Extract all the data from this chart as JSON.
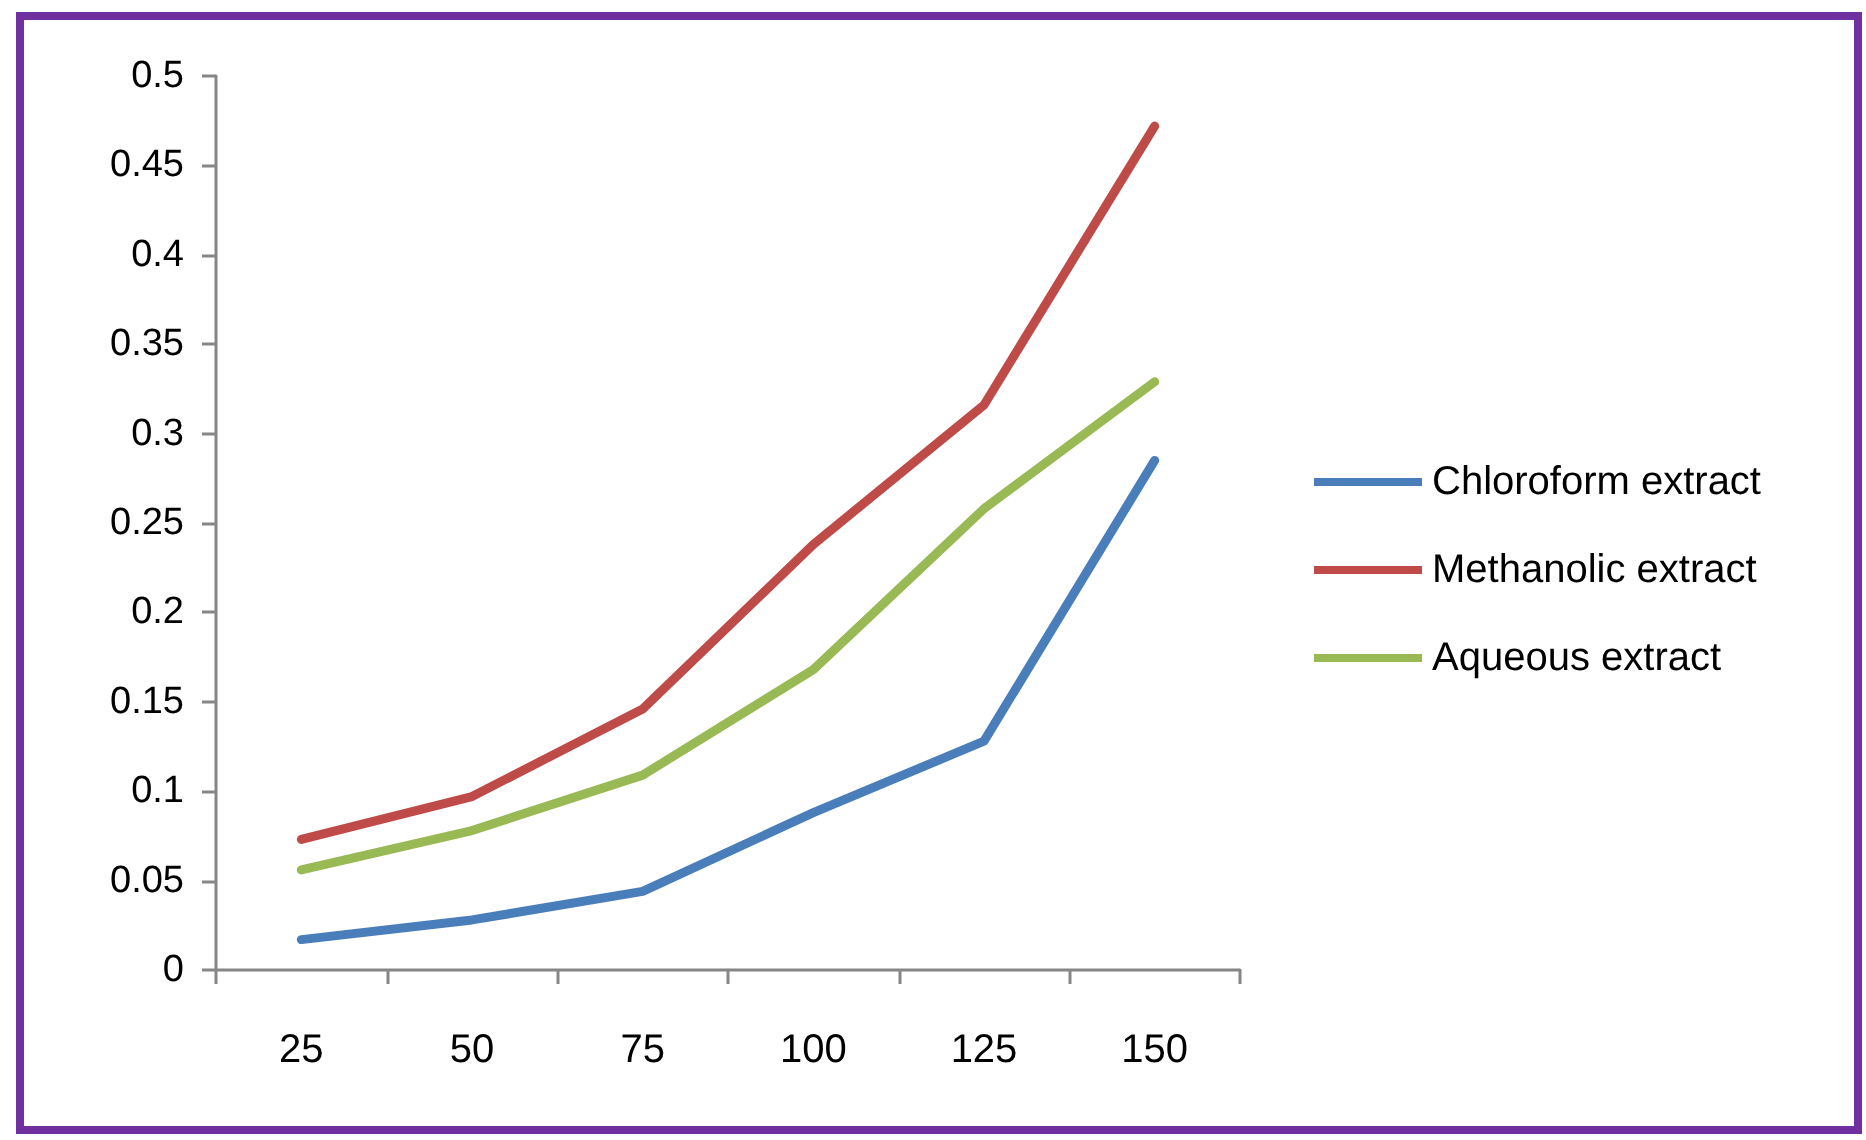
{
  "chart_data": {
    "type": "line",
    "categories": [
      "25",
      "50",
      "75",
      "100",
      "125",
      "150"
    ],
    "series": [
      {
        "name": "Chloroform extract",
        "color": "#4a7ebb",
        "values": [
          0.017,
          0.028,
          0.044,
          0.088,
          0.128,
          0.285
        ]
      },
      {
        "name": "Methanolic extract",
        "color": "#be4b48",
        "values": [
          0.073,
          0.097,
          0.146,
          0.238,
          0.316,
          0.472
        ]
      },
      {
        "name": "Aqueous extract",
        "color": "#98b954",
        "values": [
          0.056,
          0.078,
          0.109,
          0.168,
          0.258,
          0.329
        ]
      }
    ],
    "ylim": [
      0,
      0.5
    ],
    "yticks": [
      0,
      0.05,
      0.1,
      0.15,
      0.2,
      0.25,
      0.3,
      0.35,
      0.4,
      0.45,
      0.5
    ],
    "legend": "right",
    "marker": "none",
    "line_style": "solid"
  }
}
